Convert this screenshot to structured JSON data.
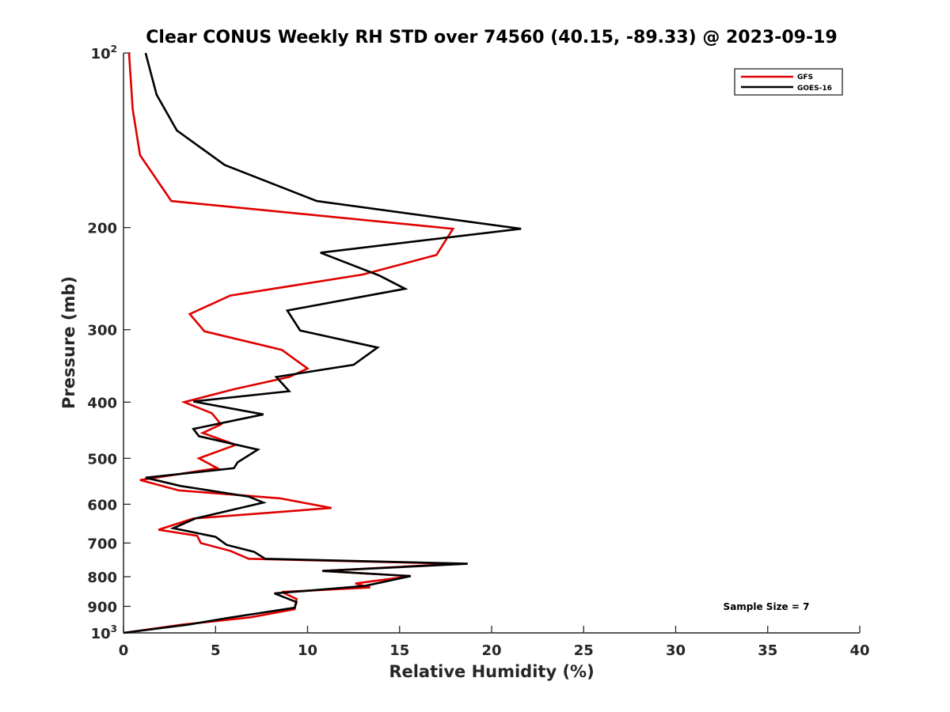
{
  "chart_data": {
    "type": "line",
    "title": "Clear CONUS Weekly RH STD over 74560 (40.15, -89.33) @ 2023-09-19",
    "xlabel": "Relative Humidity (%)",
    "ylabel": "Pressure (mb)",
    "xlim": [
      0,
      40
    ],
    "ylim": [
      1000,
      100
    ],
    "yscale": "log",
    "y_reversed": true,
    "xticks": [
      0,
      5,
      10,
      15,
      20,
      25,
      30,
      35,
      40
    ],
    "xtick_labels": [
      "0",
      "5",
      "10",
      "15",
      "20",
      "25",
      "30",
      "35",
      "40"
    ],
    "yticks": [
      100,
      200,
      300,
      400,
      500,
      600,
      700,
      800,
      900,
      1000
    ],
    "ytick_labels": [
      {
        "base": "10",
        "sup": "2"
      },
      {
        "base": "200",
        "sup": ""
      },
      {
        "base": "300",
        "sup": ""
      },
      {
        "base": "400",
        "sup": ""
      },
      {
        "base": "500",
        "sup": ""
      },
      {
        "base": "600",
        "sup": ""
      },
      {
        "base": "700",
        "sup": ""
      },
      {
        "base": "800",
        "sup": ""
      },
      {
        "base": "900",
        "sup": ""
      },
      {
        "base": "10",
        "sup": "3"
      }
    ],
    "grid": false,
    "legend_position": "top-right",
    "annotation": "Sample Size = 7",
    "series": [
      {
        "name": "GFS",
        "color": "#e00000",
        "points": [
          [
            0.3,
            100
          ],
          [
            0.5,
            125
          ],
          [
            0.9,
            150
          ],
          [
            2.6,
            180
          ],
          [
            17.9,
            201
          ],
          [
            17.0,
            223
          ],
          [
            13.0,
            241
          ],
          [
            5.8,
            262
          ],
          [
            3.6,
            282
          ],
          [
            4.4,
            302
          ],
          [
            8.6,
            325
          ],
          [
            10.0,
            350
          ],
          [
            9.0,
            362
          ],
          [
            6.0,
            380
          ],
          [
            3.3,
            400
          ],
          [
            4.8,
            418
          ],
          [
            5.3,
            437
          ],
          [
            4.3,
            452
          ],
          [
            6.1,
            474
          ],
          [
            4.1,
            500
          ],
          [
            5.1,
            520
          ],
          [
            0.9,
            545
          ],
          [
            3.0,
            568
          ],
          [
            8.5,
            586
          ],
          [
            11.3,
            609
          ],
          [
            3.8,
            635
          ],
          [
            1.9,
            664
          ],
          [
            4.0,
            680
          ],
          [
            4.2,
            700
          ],
          [
            5.8,
            722
          ],
          [
            6.8,
            745
          ],
          [
            18.2,
            760
          ],
          [
            10.8,
            782
          ],
          [
            15.6,
            798
          ],
          [
            12.6,
            822
          ],
          [
            13.4,
            835
          ],
          [
            8.6,
            850
          ],
          [
            9.4,
            874
          ],
          [
            9.3,
            910
          ],
          [
            6.9,
            940
          ],
          [
            3.2,
            968
          ],
          [
            0.0,
            1000
          ]
        ]
      },
      {
        "name": "GOES-16",
        "color": "#000000",
        "points": [
          [
            1.2,
            100
          ],
          [
            1.8,
            118
          ],
          [
            2.9,
            136
          ],
          [
            5.5,
            156
          ],
          [
            10.5,
            180
          ],
          [
            21.6,
            201
          ],
          [
            10.7,
            221
          ],
          [
            13.9,
            242
          ],
          [
            15.3,
            255
          ],
          [
            8.9,
            278
          ],
          [
            9.6,
            301
          ],
          [
            13.8,
            322
          ],
          [
            12.5,
            345
          ],
          [
            8.3,
            362
          ],
          [
            9.0,
            383
          ],
          [
            3.8,
            399
          ],
          [
            7.6,
            420
          ],
          [
            3.8,
            445
          ],
          [
            4.1,
            458
          ],
          [
            7.3,
            483
          ],
          [
            6.2,
            508
          ],
          [
            6.0,
            520
          ],
          [
            1.2,
            540
          ],
          [
            3.1,
            558
          ],
          [
            6.8,
            582
          ],
          [
            7.6,
            596
          ],
          [
            3.9,
            635
          ],
          [
            2.7,
            660
          ],
          [
            5.0,
            683
          ],
          [
            5.6,
            705
          ],
          [
            7.1,
            725
          ],
          [
            7.7,
            745
          ],
          [
            18.7,
            760
          ],
          [
            10.8,
            782
          ],
          [
            15.6,
            798
          ],
          [
            13.1,
            830
          ],
          [
            8.2,
            855
          ],
          [
            9.4,
            885
          ],
          [
            9.3,
            905
          ],
          [
            5.7,
            942
          ],
          [
            3.5,
            968
          ],
          [
            0.0,
            1000
          ]
        ]
      }
    ]
  }
}
